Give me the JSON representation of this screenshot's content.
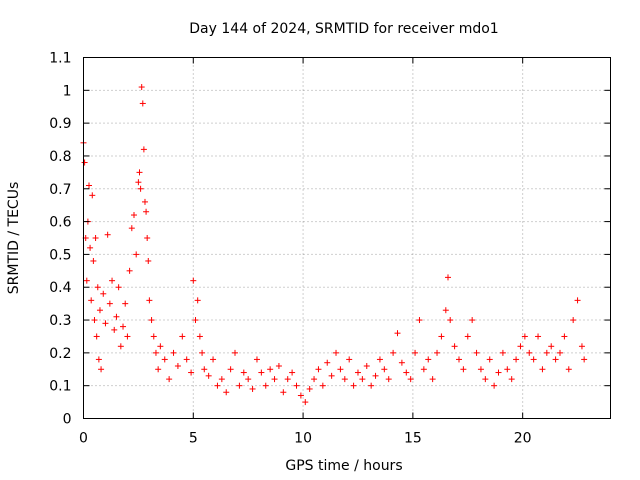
{
  "chart_data": {
    "type": "scatter",
    "title": "Day 144 of 2024, SRMTID for receiver mdo1",
    "xlabel": "GPS time / hours",
    "ylabel": "SRMTID / TECUs",
    "xlim": [
      0,
      24
    ],
    "ylim": [
      0,
      1.1
    ],
    "x_ticks": [
      0,
      5,
      10,
      15,
      20
    ],
    "x_tick_labels": [
      "0",
      "5",
      "10",
      "15",
      "20"
    ],
    "y_ticks": [
      0,
      0.1,
      0.2,
      0.3,
      0.4,
      0.5,
      0.6,
      0.7,
      0.8,
      0.9,
      1,
      1.1
    ],
    "y_tick_labels": [
      "0",
      "0.1",
      "0.2",
      "0.3",
      "0.4",
      "0.5",
      "0.6",
      "0.7",
      "0.8",
      "0.9",
      "1",
      "1.1"
    ],
    "grid": true,
    "marker": "+",
    "color": "#ff0000",
    "series": [
      {
        "name": "mdo1",
        "x": [
          0.0,
          0.05,
          0.1,
          0.15,
          0.2,
          0.25,
          0.3,
          0.35,
          0.4,
          0.45,
          0.5,
          0.55,
          0.6,
          0.65,
          0.7,
          0.75,
          0.8,
          0.9,
          1.0,
          1.1,
          1.2,
          1.3,
          1.4,
          1.5,
          1.6,
          1.7,
          1.8,
          1.9,
          2.0,
          2.1,
          2.2,
          2.3,
          2.4,
          2.5,
          2.55,
          2.6,
          2.65,
          2.7,
          2.75,
          2.8,
          2.85,
          2.9,
          2.95,
          3.0,
          3.1,
          3.2,
          3.3,
          3.4,
          3.5,
          3.7,
          3.9,
          4.1,
          4.3,
          4.5,
          4.7,
          4.9,
          5.0,
          5.1,
          5.2,
          5.3,
          5.4,
          5.5,
          5.7,
          5.9,
          6.1,
          6.3,
          6.5,
          6.7,
          6.9,
          7.1,
          7.3,
          7.5,
          7.7,
          7.9,
          8.1,
          8.3,
          8.5,
          8.7,
          8.9,
          9.1,
          9.3,
          9.5,
          9.7,
          9.9,
          10.1,
          10.3,
          10.5,
          10.7,
          10.9,
          11.1,
          11.3,
          11.5,
          11.7,
          11.9,
          12.1,
          12.3,
          12.5,
          12.7,
          12.9,
          13.1,
          13.3,
          13.5,
          13.7,
          13.9,
          14.1,
          14.3,
          14.5,
          14.7,
          14.9,
          15.1,
          15.3,
          15.5,
          15.7,
          15.9,
          16.1,
          16.3,
          16.5,
          16.6,
          16.7,
          16.9,
          17.1,
          17.3,
          17.5,
          17.7,
          17.9,
          18.1,
          18.3,
          18.5,
          18.7,
          18.9,
          19.1,
          19.3,
          19.5,
          19.7,
          19.9,
          20.1,
          20.3,
          20.5,
          20.7,
          20.9,
          21.1,
          21.3,
          21.5,
          21.7,
          21.9,
          22.1,
          22.3,
          22.5,
          22.7,
          22.8
        ],
        "y": [
          0.84,
          0.78,
          0.55,
          0.42,
          0.6,
          0.71,
          0.52,
          0.36,
          0.68,
          0.48,
          0.3,
          0.55,
          0.25,
          0.4,
          0.18,
          0.33,
          0.15,
          0.38,
          0.29,
          0.56,
          0.35,
          0.42,
          0.27,
          0.31,
          0.4,
          0.22,
          0.28,
          0.35,
          0.25,
          0.45,
          0.58,
          0.62,
          0.5,
          0.72,
          0.75,
          0.7,
          1.01,
          0.96,
          0.82,
          0.66,
          0.63,
          0.55,
          0.48,
          0.36,
          0.3,
          0.25,
          0.2,
          0.15,
          0.22,
          0.18,
          0.12,
          0.2,
          0.16,
          0.25,
          0.18,
          0.14,
          0.42,
          0.3,
          0.36,
          0.25,
          0.2,
          0.15,
          0.13,
          0.18,
          0.1,
          0.12,
          0.08,
          0.15,
          0.2,
          0.1,
          0.14,
          0.12,
          0.09,
          0.18,
          0.14,
          0.1,
          0.15,
          0.12,
          0.16,
          0.08,
          0.12,
          0.14,
          0.1,
          0.07,
          0.05,
          0.09,
          0.12,
          0.15,
          0.1,
          0.17,
          0.13,
          0.2,
          0.15,
          0.12,
          0.18,
          0.1,
          0.14,
          0.12,
          0.16,
          0.1,
          0.13,
          0.18,
          0.15,
          0.12,
          0.2,
          0.26,
          0.17,
          0.14,
          0.12,
          0.2,
          0.3,
          0.15,
          0.18,
          0.12,
          0.2,
          0.25,
          0.33,
          0.43,
          0.3,
          0.22,
          0.18,
          0.15,
          0.25,
          0.3,
          0.2,
          0.15,
          0.12,
          0.18,
          0.1,
          0.14,
          0.2,
          0.15,
          0.12,
          0.18,
          0.22,
          0.25,
          0.2,
          0.18,
          0.25,
          0.15,
          0.2,
          0.22,
          0.18,
          0.2,
          0.25,
          0.15,
          0.3,
          0.36,
          0.22,
          0.18
        ]
      }
    ]
  }
}
